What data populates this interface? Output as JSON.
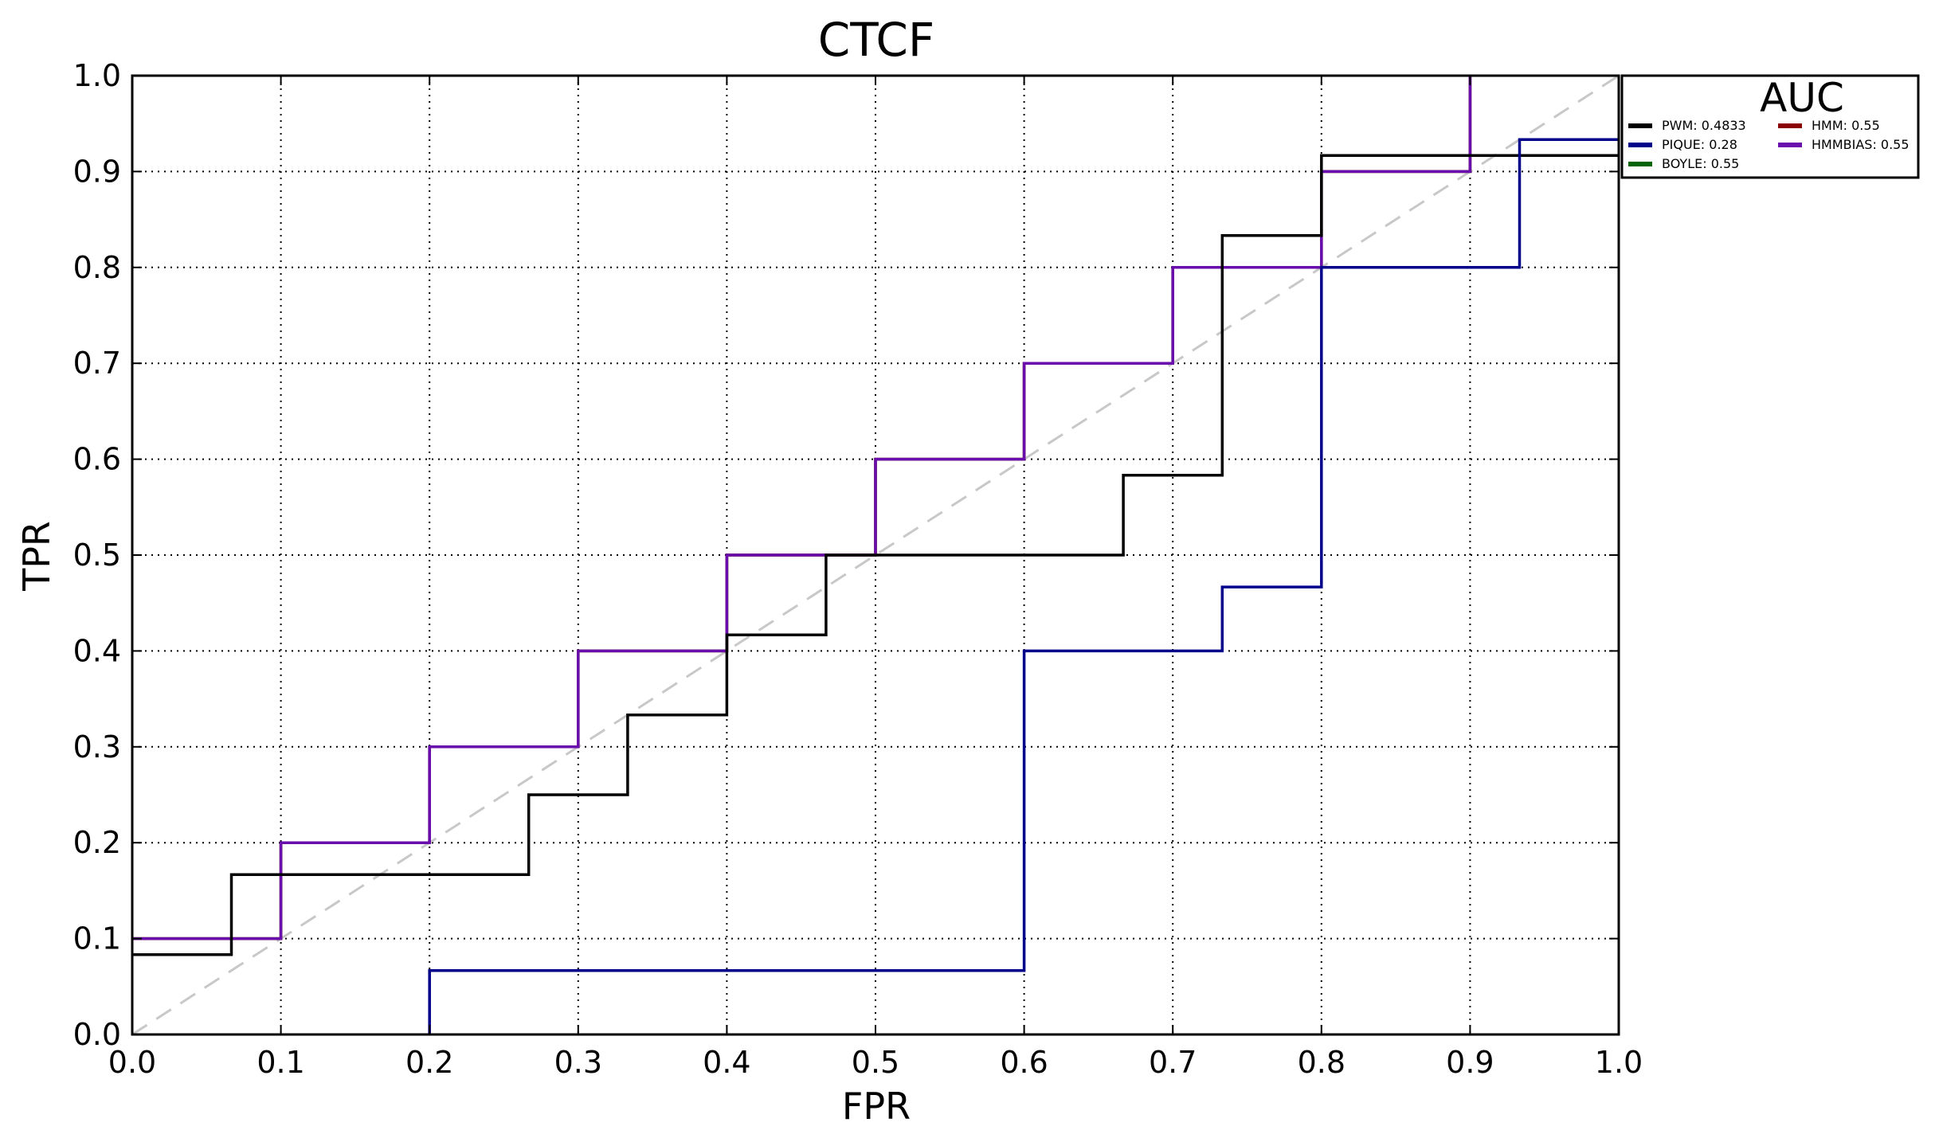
{
  "chart_data": {
    "type": "line",
    "title": "CTCF",
    "xlabel": "FPR",
    "ylabel": "TPR",
    "xlim": [
      0.0,
      1.0
    ],
    "ylim": [
      0.0,
      1.0
    ],
    "grid": true,
    "x_ticks": [
      "0.0",
      "0.1",
      "0.2",
      "0.3",
      "0.4",
      "0.5",
      "0.6",
      "0.7",
      "0.8",
      "0.9",
      "1.0"
    ],
    "y_ticks": [
      "0.0",
      "0.1",
      "0.2",
      "0.3",
      "0.4",
      "0.5",
      "0.6",
      "0.7",
      "0.8",
      "0.9",
      "1.0"
    ],
    "legend": {
      "title": "AUC",
      "placement": "top-right, outside plot",
      "entries": [
        {
          "label": "PWM: 0.4833",
          "color": "#000000"
        },
        {
          "label": "PIQUE: 0.28",
          "color": "#00008b"
        },
        {
          "label": "BOYLE: 0.55",
          "color": "#006400"
        },
        {
          "label": "HMM: 0.55",
          "color": "#8b0000"
        },
        {
          "label": "HMMBIAS: 0.55",
          "color": "#6a0dad"
        }
      ]
    },
    "diagonal": {
      "color": "#c8c8c8",
      "style": "dashed"
    },
    "series": [
      {
        "color": "#006400",
        "step": true,
        "x": [
          0.0,
          0.1,
          0.1,
          0.2,
          0.2,
          0.3,
          0.3,
          0.4,
          0.4,
          0.5,
          0.5,
          0.6,
          0.6,
          0.7,
          0.7,
          0.8,
          0.8,
          0.9,
          0.9
        ],
        "y": [
          0.1,
          0.1,
          0.2,
          0.2,
          0.3,
          0.3,
          0.4,
          0.4,
          0.5,
          0.5,
          0.6,
          0.6,
          0.7,
          0.7,
          0.8,
          0.8,
          0.9,
          0.9,
          1.0
        ]
      },
      {
        "color": "#8b0000",
        "step": true,
        "x": [
          0.0,
          0.1,
          0.1,
          0.2,
          0.2,
          0.3,
          0.3,
          0.4,
          0.4,
          0.5,
          0.5,
          0.6,
          0.6,
          0.7,
          0.7,
          0.8,
          0.8,
          0.9,
          0.9
        ],
        "y": [
          0.1,
          0.1,
          0.2,
          0.2,
          0.3,
          0.3,
          0.4,
          0.4,
          0.5,
          0.5,
          0.6,
          0.6,
          0.7,
          0.7,
          0.8,
          0.8,
          0.9,
          0.9,
          1.0
        ]
      },
      {
        "color": "#6a0dad",
        "step": true,
        "x": [
          0.0,
          0.1,
          0.1,
          0.2,
          0.2,
          0.3,
          0.3,
          0.4,
          0.4,
          0.5,
          0.5,
          0.6,
          0.6,
          0.7,
          0.7,
          0.8,
          0.8,
          0.9,
          0.9
        ],
        "y": [
          0.1,
          0.1,
          0.2,
          0.2,
          0.3,
          0.3,
          0.4,
          0.4,
          0.5,
          0.5,
          0.6,
          0.6,
          0.7,
          0.7,
          0.8,
          0.8,
          0.9,
          0.9,
          1.0
        ]
      },
      {
        "color": "#000000",
        "step": true,
        "x": [
          0.0,
          0.0667,
          0.0667,
          0.2667,
          0.2667,
          0.3333,
          0.3333,
          0.4,
          0.4,
          0.4667,
          0.4667,
          0.6667,
          0.6667,
          0.7333,
          0.7333,
          0.8,
          0.8,
          1.0
        ],
        "y": [
          0.0833,
          0.0833,
          0.1667,
          0.1667,
          0.25,
          0.25,
          0.3333,
          0.3333,
          0.4167,
          0.4167,
          0.5,
          0.5,
          0.5833,
          0.5833,
          0.8333,
          0.8333,
          0.9167,
          0.9167
        ]
      },
      {
        "color": "#00008b",
        "step": true,
        "x": [
          0.2,
          0.2,
          0.6,
          0.6,
          0.7333,
          0.7333,
          0.8,
          0.8,
          0.9333,
          0.9333,
          1.0
        ],
        "y": [
          0.0,
          0.0667,
          0.0667,
          0.4,
          0.4,
          0.4667,
          0.4667,
          0.8,
          0.8,
          0.9333,
          0.9333
        ]
      }
    ]
  }
}
